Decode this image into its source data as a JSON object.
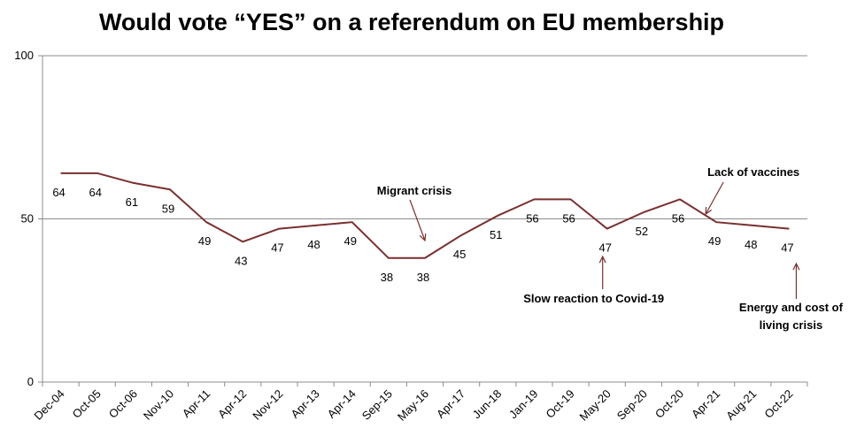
{
  "chart_data": {
    "type": "line",
    "title": "Would vote “YES” on a referendum on EU membership",
    "xlabel": "",
    "ylabel": "",
    "ylim": [
      0,
      100
    ],
    "yticks": [
      0,
      50,
      100
    ],
    "grid": "horizontal",
    "line_color": "#7a2f2f",
    "categories": [
      "Dec-04",
      "Oct-05",
      "Oct-06",
      "Nov-10",
      "Apr-11",
      "Apr-12",
      "Nov-12",
      "Apr-13",
      "Apr-14",
      "Sep-15",
      "May-16",
      "Apr-17",
      "Jun-18",
      "Jan-19",
      "Oct-19",
      "May-20",
      "Sep-20",
      "Oct-20",
      "Apr-21",
      "Aug-21",
      "Oct-22"
    ],
    "values": [
      64,
      64,
      61,
      59,
      49,
      43,
      47,
      48,
      49,
      38,
      38,
      45,
      51,
      56,
      56,
      47,
      52,
      56,
      49,
      48,
      47
    ],
    "annotations": [
      {
        "text": "Migrant crisis",
        "category": "May-16"
      },
      {
        "text": "Slow reaction to Covid-19",
        "category": "May-20"
      },
      {
        "text": "Lack of vaccines",
        "category": "Apr-21"
      },
      {
        "text": "Energy and cost of living crisis",
        "category": "Oct-22"
      }
    ]
  }
}
